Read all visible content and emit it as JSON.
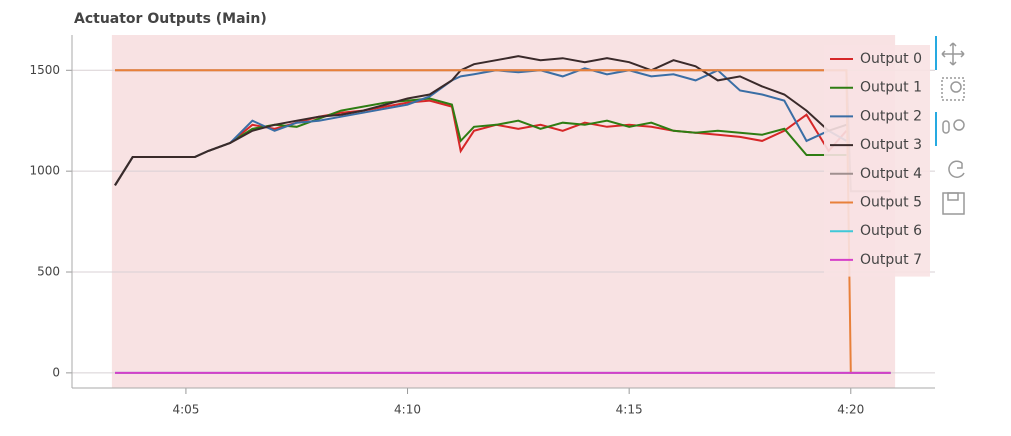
{
  "chart_data": {
    "type": "line",
    "title": "Actuator Outputs (Main)",
    "x": [
      243.4,
      243.8,
      244.5,
      245.2,
      245.5,
      246.0,
      246.5,
      247.0,
      247.5,
      248.0,
      248.5,
      249.0,
      249.5,
      250.0,
      250.5,
      251.0,
      251.2,
      251.5,
      252.0,
      252.5,
      253.0,
      253.5,
      254.0,
      254.5,
      255.0,
      255.5,
      256.0,
      256.5,
      257.0,
      257.5,
      258.0,
      258.5,
      259.0,
      259.5,
      259.9,
      260.0,
      260.9
    ],
    "xlim": [
      242.43,
      261.9
    ],
    "xticks": [
      {
        "value": 245,
        "label": "4:05"
      },
      {
        "value": 250,
        "label": "4:10"
      },
      {
        "value": 255,
        "label": "4:15"
      },
      {
        "value": 260,
        "label": "4:20"
      }
    ],
    "ylim": [
      -75,
      1675
    ],
    "yticks": [
      0,
      500,
      1000,
      1500
    ],
    "grid": true,
    "legend": "top-right",
    "shade": {
      "xlim": [
        243.33,
        261.0
      ],
      "color": "#f8e2e3"
    },
    "series": [
      {
        "name": "Output 0",
        "color": "#d62728",
        "values": [
          930,
          1070,
          1070,
          1070,
          1100,
          1140,
          1230,
          1210,
          1240,
          1270,
          1290,
          1300,
          1320,
          1340,
          1350,
          1320,
          1100,
          1200,
          1230,
          1210,
          1230,
          1200,
          1240,
          1220,
          1230,
          1220,
          1200,
          1190,
          1180,
          1170,
          1150,
          1200,
          1280,
          1100,
          1200,
          null,
          null
        ]
      },
      {
        "name": "Output 1",
        "color": "#2e7d13",
        "values": [
          930,
          1070,
          1070,
          1070,
          1100,
          1140,
          1210,
          1230,
          1220,
          1260,
          1300,
          1320,
          1340,
          1350,
          1360,
          1330,
          1150,
          1220,
          1230,
          1250,
          1210,
          1240,
          1230,
          1250,
          1220,
          1240,
          1200,
          1190,
          1200,
          1190,
          1180,
          1210,
          1080,
          1080,
          1080,
          null,
          null
        ]
      },
      {
        "name": "Output 2",
        "color": "#3a6ea5",
        "values": [
          930,
          1070,
          1070,
          1070,
          1100,
          1140,
          1250,
          1200,
          1240,
          1250,
          1270,
          1290,
          1310,
          1330,
          1370,
          1450,
          1470,
          1480,
          1500,
          1490,
          1500,
          1470,
          1510,
          1480,
          1500,
          1470,
          1480,
          1450,
          1500,
          1400,
          1380,
          1350,
          1150,
          1200,
          1150,
          null,
          null
        ]
      },
      {
        "name": "Output 3",
        "color": "#3a2a2a",
        "values": [
          930,
          1070,
          1070,
          1070,
          1100,
          1140,
          1200,
          1230,
          1250,
          1270,
          1280,
          1300,
          1330,
          1360,
          1380,
          1450,
          1500,
          1530,
          1550,
          1570,
          1550,
          1560,
          1540,
          1560,
          1540,
          1500,
          1550,
          1520,
          1450,
          1470,
          1420,
          1380,
          1300,
          1200,
          1230,
          null,
          null
        ]
      },
      {
        "name": "Output 4",
        "color": "#a0908f",
        "values": [
          1500,
          1500,
          1500,
          1500,
          1500,
          1500,
          1500,
          1500,
          1500,
          1500,
          1500,
          1500,
          1500,
          1500,
          1500,
          1500,
          1500,
          1500,
          1500,
          1500,
          1500,
          1500,
          1500,
          1500,
          1500,
          1500,
          1500,
          1500,
          1500,
          1500,
          1500,
          1500,
          1500,
          1500,
          1500,
          900,
          900
        ]
      },
      {
        "name": "Output 5",
        "color": "#e8803a",
        "values": [
          1500,
          1500,
          1500,
          1500,
          1500,
          1500,
          1500,
          1500,
          1500,
          1500,
          1500,
          1500,
          1500,
          1500,
          1500,
          1500,
          1500,
          1500,
          1500,
          1500,
          1500,
          1500,
          1500,
          1500,
          1500,
          1500,
          1500,
          1500,
          1500,
          1500,
          1500,
          1500,
          1500,
          1500,
          1500,
          0,
          0
        ]
      },
      {
        "name": "Output 6",
        "color": "#3fc8d8",
        "values": [
          0,
          0,
          0,
          0,
          0,
          0,
          0,
          0,
          0,
          0,
          0,
          0,
          0,
          0,
          0,
          0,
          0,
          0,
          0,
          0,
          0,
          0,
          0,
          0,
          0,
          0,
          0,
          0,
          0,
          0,
          0,
          0,
          0,
          0,
          0,
          0,
          0
        ]
      },
      {
        "name": "Output 7",
        "color": "#d63fc8",
        "values": [
          0,
          0,
          0,
          0,
          0,
          0,
          0,
          0,
          0,
          0,
          0,
          0,
          0,
          0,
          0,
          0,
          0,
          0,
          0,
          0,
          0,
          0,
          0,
          0,
          0,
          0,
          0,
          0,
          0,
          0,
          0,
          0,
          0,
          0,
          0,
          0,
          0
        ]
      }
    ]
  }
}
